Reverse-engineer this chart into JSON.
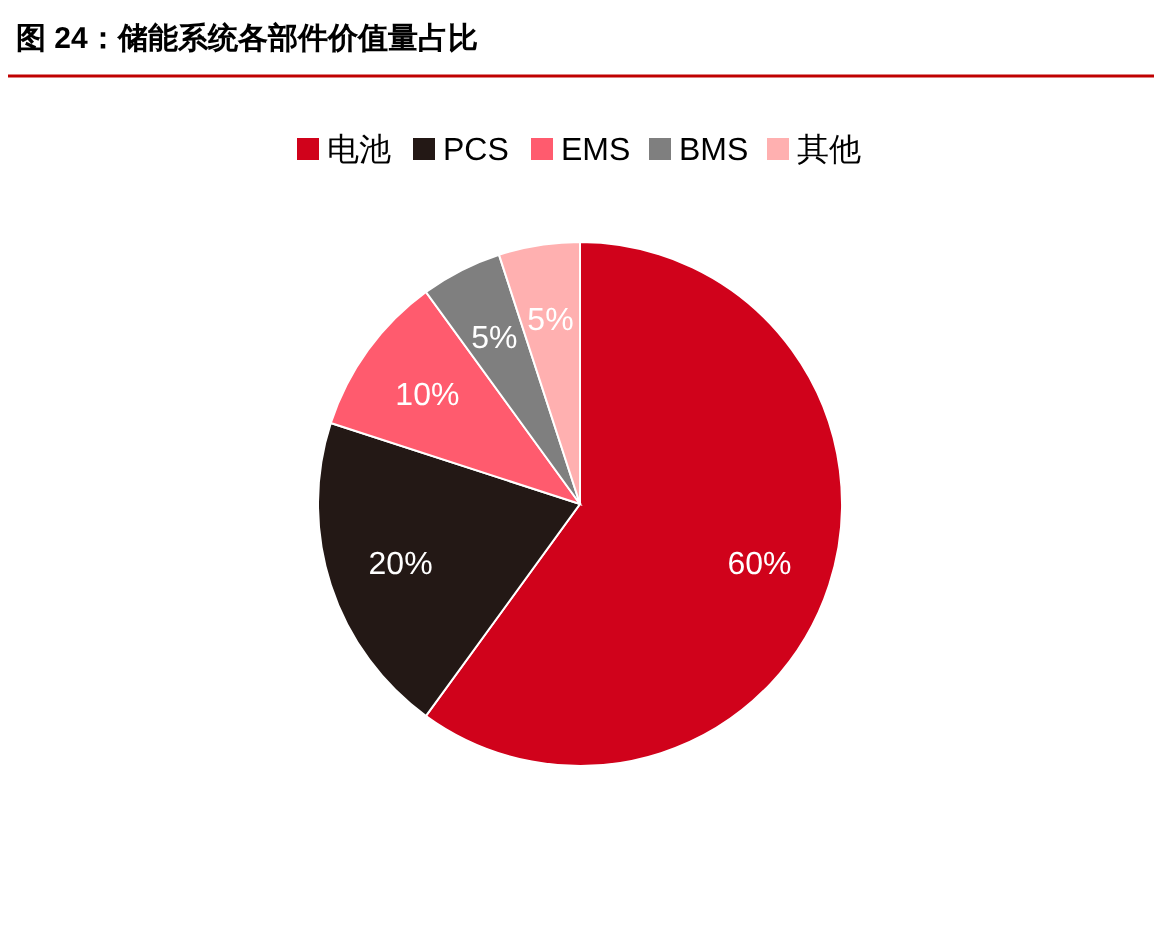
{
  "chart_data": {
    "type": "pie",
    "title": "图 24：储能系统各部件价值量占比",
    "categories": [
      "电池",
      "PCS",
      "EMS",
      "BMS",
      "其他"
    ],
    "values": [
      60,
      20,
      10,
      5,
      5
    ],
    "colors": [
      "#d0021b",
      "#231815",
      "#ff5b6e",
      "#7f7f7f",
      "#ffb0b0"
    ],
    "value_labels": [
      "60%",
      "20%",
      "10%",
      "5%",
      "5%"
    ],
    "legend": "top"
  }
}
